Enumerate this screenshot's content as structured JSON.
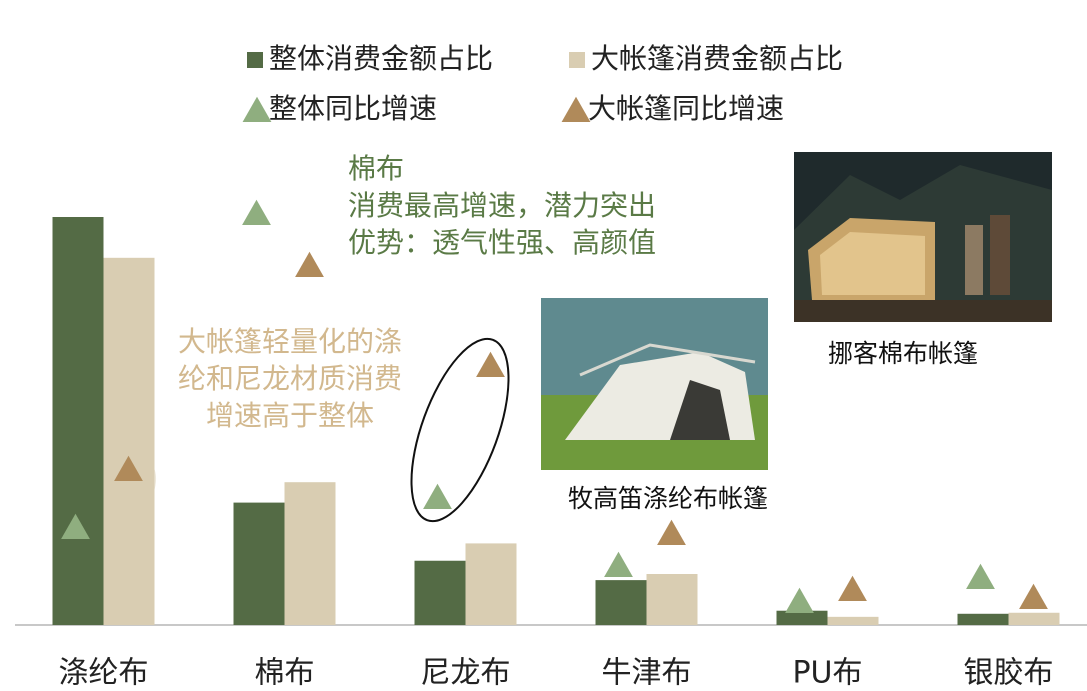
{
  "chart_data": {
    "type": "bar",
    "categories": [
      "涤纶布",
      "棉布",
      "尼龙布",
      "牛津布",
      "PU布",
      "银胶布"
    ],
    "series": [
      {
        "name": "整体消费金额占比",
        "color": "#546b45",
        "values": [
          40,
          12,
          6.3,
          4.4,
          1.4,
          1.1
        ]
      },
      {
        "name": "大帐篷消费金额占比",
        "color": "#d9cdb2",
        "values": [
          36,
          14,
          8,
          5,
          0.8,
          1.2
        ]
      },
      {
        "name": "整体同比增速",
        "color": "#8fae7f",
        "axis": "y2",
        "marker": "triangle",
        "values": [
          24.5,
          103,
          32,
          15,
          6,
          12
        ]
      },
      {
        "name": "大帐篷同比增速",
        "color": "#b08a5a",
        "axis": "y2",
        "marker": "triangle",
        "values": [
          39,
          90,
          65,
          23,
          9,
          7
        ]
      }
    ],
    "ylim": [
      0,
      45
    ],
    "y2lim": [
      0,
      115
    ],
    "annotations": [
      {
        "lines": [
          "棉布",
          "消费最高增速，潜力突出",
          "优势：透气性强、高颜值"
        ],
        "color": "#5a7a46"
      },
      {
        "lines": [
          "大帐篷轻量化的涤",
          "纶和尼龙材质消费",
          "增速高于整体"
        ],
        "color": "#d2b88e"
      }
    ],
    "photo_captions": [
      "挪客棉布帐篷",
      "牧高笛涤纶布帐篷"
    ]
  }
}
